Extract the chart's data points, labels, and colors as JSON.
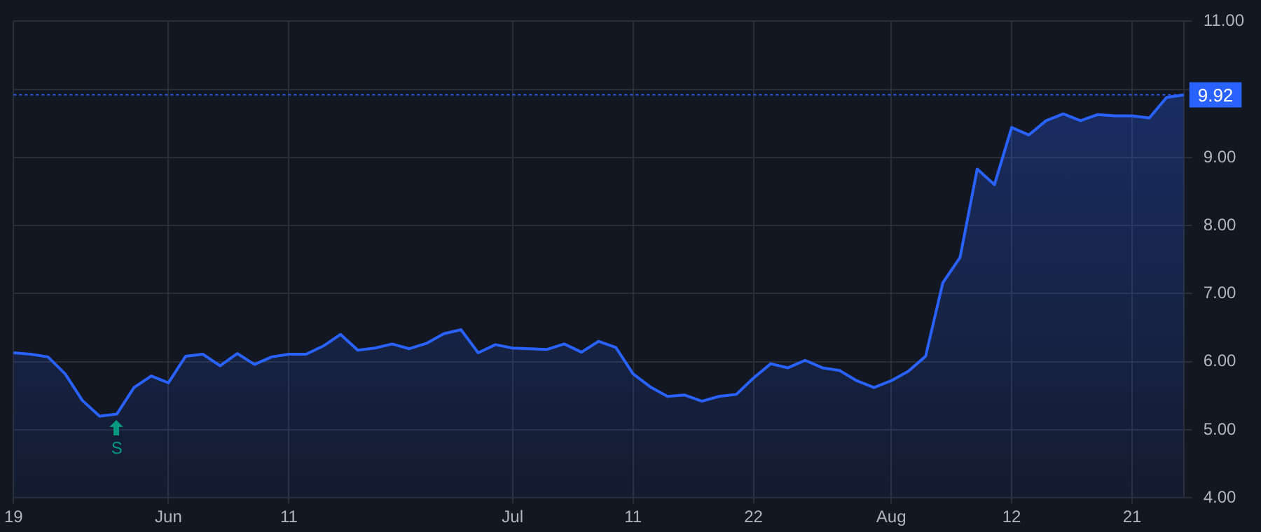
{
  "chart_data": {
    "type": "area",
    "categories": [
      "19",
      null,
      null,
      null,
      null,
      null,
      null,
      null,
      null,
      "Jun",
      null,
      null,
      null,
      null,
      null,
      null,
      "11",
      null,
      null,
      null,
      null,
      null,
      null,
      null,
      null,
      null,
      null,
      null,
      null,
      "Jul",
      null,
      null,
      null,
      null,
      null,
      null,
      "11",
      null,
      null,
      null,
      null,
      null,
      null,
      "22",
      null,
      null,
      null,
      null,
      null,
      null,
      null,
      "Aug",
      null,
      null,
      null,
      null,
      null,
      null,
      "12",
      null,
      null,
      null,
      null,
      null,
      null,
      "21",
      null,
      null,
      null
    ],
    "series": [
      {
        "color": "#2962ff",
        "values": [
          6.13,
          6.11,
          6.07,
          5.82,
          5.43,
          5.2,
          5.23,
          5.62,
          5.79,
          5.69,
          6.08,
          6.11,
          5.94,
          6.12,
          5.96,
          6.07,
          6.11,
          6.11,
          6.23,
          6.4,
          6.17,
          6.2,
          6.26,
          6.19,
          6.27,
          6.41,
          6.47,
          6.13,
          6.25,
          6.2,
          6.19,
          6.18,
          6.26,
          6.14,
          6.3,
          6.21,
          5.82,
          5.63,
          5.49,
          5.51,
          5.42,
          5.49,
          5.52,
          5.76,
          5.97,
          5.91,
          6.02,
          5.91,
          5.87,
          5.72,
          5.62,
          5.72,
          5.86,
          6.08,
          7.16,
          7.53,
          8.83,
          8.6,
          9.44,
          9.33,
          9.54,
          9.64,
          9.54,
          9.63,
          9.61,
          9.61,
          9.58,
          9.88,
          9.92
        ]
      }
    ],
    "ylim": [
      4,
      11
    ],
    "yticks": [
      {
        "value": 4,
        "label": "4.00"
      },
      {
        "value": 5,
        "label": "5.00"
      },
      {
        "value": 6,
        "label": "6.00"
      },
      {
        "value": 7,
        "label": "7.00"
      },
      {
        "value": 8,
        "label": "8.00"
      },
      {
        "value": 9,
        "label": "9.00"
      },
      {
        "value": 10,
        "label": null
      },
      {
        "value": 11,
        "label": "11.00"
      }
    ],
    "grid": true,
    "legend": false,
    "marker": "none",
    "ref_lines": [
      {
        "axis": "y",
        "value": 9.92,
        "label": "9.92",
        "color": "#2962ff",
        "line_style": "dotted"
      }
    ],
    "annotations": [
      {
        "text": "S",
        "y": 5.23
      }
    ]
  }
}
